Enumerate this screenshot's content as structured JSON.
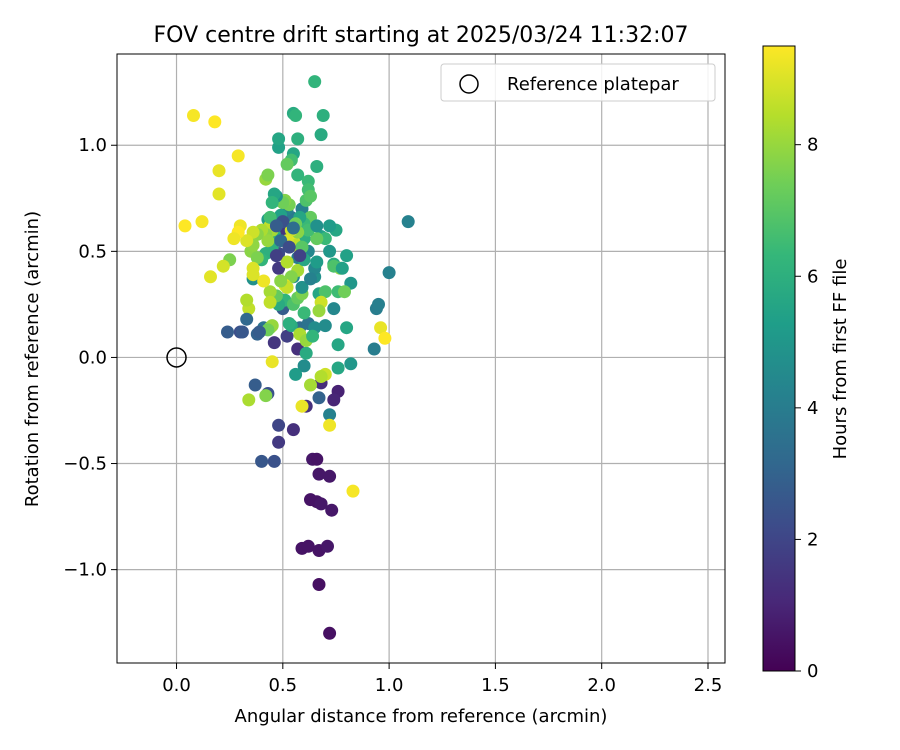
{
  "chart_data": {
    "type": "scatter",
    "title": "FOV centre drift starting at 2025/03/24 11:32:07",
    "xlabel": "Angular distance from reference (arcmin)",
    "ylabel": "Rotation from reference (arcmin)",
    "xlim": [
      -0.28,
      2.58
    ],
    "ylim": [
      -1.44,
      1.43
    ],
    "xticks": [
      0.0,
      0.5,
      1.0,
      1.5,
      2.0,
      2.5
    ],
    "xtick_labels": [
      "0.0",
      "0.5",
      "1.0",
      "1.5",
      "2.0",
      "2.5"
    ],
    "yticks": [
      -1.0,
      -0.5,
      0.0,
      0.5,
      1.0
    ],
    "ytick_labels": [
      "−1.0",
      "−0.5",
      "0.0",
      "0.5",
      "1.0"
    ],
    "grid": true,
    "legend": {
      "placement": "top-right",
      "label": "Reference platepar"
    },
    "reference_point": {
      "x": 0.0,
      "y": 0.0
    },
    "colorbar": {
      "label": "Hours from first FF file",
      "range": [
        0,
        9.5
      ],
      "ticks": [
        0,
        2,
        4,
        6,
        8
      ],
      "tick_labels": [
        "0",
        "2",
        "4",
        "6",
        "8"
      ],
      "colormap": "viridis",
      "colormap_stops": [
        "#440154",
        "#482878",
        "#3e4989",
        "#31688e",
        "#26828e",
        "#1f9e89",
        "#35b779",
        "#6ece58",
        "#b5de2b",
        "#fde725"
      ]
    },
    "points": [
      [
        0.72,
        -1.3,
        0.4
      ],
      [
        0.67,
        -1.07,
        0.4
      ],
      [
        0.59,
        -0.9,
        0.5
      ],
      [
        0.62,
        -0.89,
        0.5
      ],
      [
        0.67,
        -0.91,
        0.5
      ],
      [
        0.71,
        -0.89,
        0.6
      ],
      [
        0.63,
        -0.67,
        0.5
      ],
      [
        0.66,
        -0.68,
        0.5
      ],
      [
        0.68,
        -0.69,
        0.6
      ],
      [
        0.73,
        -0.72,
        0.6
      ],
      [
        0.64,
        -0.48,
        0.6
      ],
      [
        0.66,
        -0.48,
        0.5
      ],
      [
        0.67,
        -0.55,
        0.6
      ],
      [
        0.72,
        -0.56,
        0.6
      ],
      [
        0.76,
        -0.16,
        0.9
      ],
      [
        0.74,
        -0.2,
        1.0
      ],
      [
        0.68,
        -0.12,
        1.2
      ],
      [
        0.61,
        -0.23,
        1.3
      ],
      [
        0.55,
        -0.34,
        1.3
      ],
      [
        0.48,
        -0.4,
        1.6
      ],
      [
        0.48,
        -0.32,
        2.0
      ],
      [
        0.46,
        -0.49,
        2.4
      ],
      [
        0.4,
        -0.49,
        2.6
      ],
      [
        0.43,
        -0.17,
        2.4
      ],
      [
        0.37,
        -0.13,
        2.8
      ],
      [
        0.3,
        0.12,
        2.3
      ],
      [
        0.24,
        0.12,
        2.8
      ],
      [
        0.38,
        0.11,
        3.0
      ],
      [
        0.41,
        0.14,
        3.6
      ],
      [
        0.46,
        0.07,
        1.5
      ],
      [
        0.57,
        0.04,
        1.3
      ],
      [
        0.52,
        0.1,
        1.8
      ],
      [
        0.58,
        0.14,
        3.4
      ],
      [
        0.62,
        0.16,
        3.6
      ],
      [
        0.65,
        0.14,
        4.6
      ],
      [
        0.67,
        -0.19,
        3.0
      ],
      [
        0.72,
        -0.27,
        4.2
      ],
      [
        0.6,
        -0.04,
        4.6
      ],
      [
        0.56,
        -0.08,
        5.2
      ],
      [
        0.61,
        0.02,
        5.8
      ],
      [
        0.93,
        0.04,
        4.0
      ],
      [
        0.94,
        0.23,
        4.0
      ],
      [
        0.95,
        0.25,
        4.1
      ],
      [
        1.0,
        0.4,
        4.2
      ],
      [
        1.09,
        0.64,
        4.2
      ],
      [
        0.82,
        -0.03,
        5.0
      ],
      [
        0.76,
        0.06,
        5.6
      ],
      [
        0.76,
        -0.05,
        5.6
      ],
      [
        0.8,
        0.14,
        5.6
      ],
      [
        0.76,
        0.31,
        6.5
      ],
      [
        0.8,
        0.48,
        5.4
      ],
      [
        0.82,
        0.35,
        5.0
      ],
      [
        0.74,
        0.44,
        5.8
      ],
      [
        0.75,
        0.6,
        5.6
      ],
      [
        0.72,
        0.62,
        5.2
      ],
      [
        0.68,
        0.57,
        5.4
      ],
      [
        0.67,
        0.3,
        5.6
      ],
      [
        0.7,
        0.31,
        6.8
      ],
      [
        0.65,
        0.38,
        4.8
      ],
      [
        0.62,
        0.5,
        4.4
      ],
      [
        0.6,
        0.56,
        4.7
      ],
      [
        0.59,
        0.7,
        4.2
      ],
      [
        0.57,
        0.47,
        4.0
      ],
      [
        0.55,
        0.38,
        4.6
      ],
      [
        0.53,
        0.62,
        3.5
      ],
      [
        0.54,
        0.66,
        3.8
      ],
      [
        0.52,
        0.7,
        4.2
      ],
      [
        0.5,
        0.58,
        3.6
      ],
      [
        0.48,
        0.49,
        2.1
      ],
      [
        0.5,
        0.6,
        1.5
      ],
      [
        0.48,
        0.42,
        1.6
      ],
      [
        0.5,
        0.23,
        2.8
      ],
      [
        0.47,
        0.74,
        5.0
      ],
      [
        0.44,
        0.65,
        5.2
      ],
      [
        0.46,
        0.58,
        5.8
      ],
      [
        0.45,
        0.52,
        6.0
      ],
      [
        0.42,
        0.49,
        6.0
      ],
      [
        0.4,
        0.46,
        6.2
      ],
      [
        0.36,
        0.37,
        4.8
      ],
      [
        0.35,
        0.5,
        7.8
      ],
      [
        0.38,
        0.47,
        7.6
      ],
      [
        0.48,
        0.99,
        5.4
      ],
      [
        0.48,
        1.03,
        5.6
      ],
      [
        0.55,
        1.15,
        5.8
      ],
      [
        0.56,
        1.14,
        6.2
      ],
      [
        0.57,
        1.03,
        6.0
      ],
      [
        0.55,
        0.96,
        5.6
      ],
      [
        0.54,
        0.93,
        6.6
      ],
      [
        0.52,
        0.91,
        7.2
      ],
      [
        0.57,
        0.86,
        6.2
      ],
      [
        0.62,
        0.83,
        6.4
      ],
      [
        0.62,
        0.79,
        6.6
      ],
      [
        0.61,
        0.74,
        6.8
      ],
      [
        0.63,
        0.76,
        7.0
      ],
      [
        0.63,
        0.66,
        7.2
      ],
      [
        0.6,
        0.63,
        6.4
      ],
      [
        0.6,
        0.56,
        6.0
      ],
      [
        0.58,
        0.48,
        5.8
      ],
      [
        0.58,
        0.66,
        5.6
      ],
      [
        0.53,
        0.72,
        7.5
      ],
      [
        0.51,
        0.74,
        7.7
      ],
      [
        0.5,
        0.73,
        7.4
      ],
      [
        0.47,
        0.76,
        4.8
      ],
      [
        0.43,
        0.65,
        5.2
      ],
      [
        0.45,
        0.6,
        8.2
      ],
      [
        0.44,
        0.62,
        8.6
      ],
      [
        0.42,
        0.58,
        7.8
      ],
      [
        0.43,
        0.55,
        8.0
      ],
      [
        0.4,
        0.6,
        8.3
      ],
      [
        0.38,
        0.58,
        7.8
      ],
      [
        0.36,
        0.53,
        7.9
      ],
      [
        0.36,
        0.59,
        8.8
      ],
      [
        0.33,
        0.55,
        9.0
      ],
      [
        0.3,
        0.62,
        9.3
      ],
      [
        0.29,
        0.59,
        9.5
      ],
      [
        0.27,
        0.56,
        9.3
      ],
      [
        0.25,
        0.46,
        7.6
      ],
      [
        0.22,
        0.43,
        8.9
      ],
      [
        0.16,
        0.38,
        9.1
      ],
      [
        0.12,
        0.64,
        9.4
      ],
      [
        0.04,
        0.62,
        9.5
      ],
      [
        0.08,
        1.14,
        9.4
      ],
      [
        0.18,
        1.11,
        9.5
      ],
      [
        0.29,
        0.95,
        9.4
      ],
      [
        0.2,
        0.88,
        9.2
      ],
      [
        0.2,
        0.77,
        9.1
      ],
      [
        0.42,
        0.84,
        8.0
      ],
      [
        0.43,
        0.86,
        7.6
      ],
      [
        0.65,
        1.3,
        6.2
      ],
      [
        0.69,
        1.14,
        6.0
      ],
      [
        0.68,
        1.05,
        5.8
      ],
      [
        0.66,
        0.9,
        6.0
      ],
      [
        0.55,
        0.55,
        9.2
      ],
      [
        0.56,
        0.53,
        8.6
      ],
      [
        0.57,
        0.41,
        8.2
      ],
      [
        0.54,
        0.38,
        7.7
      ],
      [
        0.52,
        0.45,
        8.4
      ],
      [
        0.51,
        0.34,
        9.1
      ],
      [
        0.52,
        0.33,
        8.7
      ],
      [
        0.51,
        0.27,
        6.2
      ],
      [
        0.48,
        0.25,
        5.8
      ],
      [
        0.47,
        0.29,
        7.2
      ],
      [
        0.49,
        0.36,
        7.8
      ],
      [
        0.44,
        0.31,
        8.2
      ],
      [
        0.44,
        0.26,
        8.6
      ],
      [
        0.41,
        0.36,
        9.3
      ],
      [
        0.36,
        0.39,
        9.0
      ],
      [
        0.36,
        0.42,
        9.0
      ],
      [
        0.34,
        0.23,
        8.6
      ],
      [
        0.33,
        0.27,
        8.4
      ],
      [
        0.44,
        0.14,
        7.8
      ],
      [
        0.45,
        0.15,
        8.0
      ],
      [
        0.43,
        0.13,
        7.4
      ],
      [
        0.55,
        0.25,
        6.8
      ],
      [
        0.57,
        0.28,
        7.2
      ],
      [
        0.59,
        0.3,
        7.6
      ],
      [
        0.54,
        0.15,
        5.8
      ],
      [
        0.53,
        0.16,
        6.0
      ],
      [
        0.58,
        0.11,
        8.3
      ],
      [
        0.61,
        0.08,
        8.0
      ],
      [
        0.6,
        0.21,
        6.4
      ],
      [
        0.68,
        0.26,
        8.8
      ],
      [
        0.67,
        0.22,
        8.0
      ],
      [
        0.64,
        0.1,
        6.2
      ],
      [
        0.7,
        -0.08,
        8.8
      ],
      [
        0.68,
        -0.09,
        8.4
      ],
      [
        0.63,
        -0.13,
        8.2
      ],
      [
        0.59,
        -0.23,
        9.2
      ],
      [
        0.72,
        -0.32,
        9.3
      ],
      [
        0.45,
        -0.02,
        9.2
      ],
      [
        0.34,
        -0.2,
        8.3
      ],
      [
        0.42,
        -0.18,
        7.7
      ],
      [
        0.83,
        -0.63,
        9.4
      ],
      [
        0.96,
        0.14,
        9.2
      ],
      [
        0.98,
        0.09,
        9.5
      ],
      [
        0.79,
        0.31,
        7.4
      ],
      [
        0.77,
        0.42,
        7.8
      ],
      [
        0.74,
        0.43,
        6.8
      ],
      [
        0.7,
        0.56,
        6.4
      ],
      [
        0.66,
        0.56,
        7.2
      ],
      [
        0.62,
        0.6,
        6.6
      ],
      [
        0.59,
        0.52,
        7.0
      ],
      [
        0.57,
        0.59,
        7.8
      ],
      [
        0.56,
        0.63,
        7.4
      ],
      [
        0.54,
        0.6,
        8.8
      ],
      [
        0.52,
        0.55,
        9.0
      ],
      [
        0.59,
        0.33,
        4.8
      ],
      [
        0.65,
        0.42,
        4.4
      ],
      [
        0.7,
        0.15,
        4.6
      ],
      [
        0.74,
        0.23,
        4.4
      ],
      [
        0.63,
        0.37,
        4.2
      ],
      [
        0.66,
        0.62,
        4.8
      ],
      [
        0.78,
        0.42,
        5.4
      ],
      [
        0.72,
        0.5,
        5.0
      ],
      [
        0.66,
        0.45,
        5.2
      ],
      [
        0.6,
        0.46,
        5.6
      ],
      [
        0.49,
        0.67,
        5.4
      ],
      [
        0.46,
        0.77,
        5.6
      ],
      [
        0.45,
        0.73,
        6.2
      ],
      [
        0.44,
        0.66,
        6.6
      ],
      [
        0.5,
        0.64,
        2.4
      ],
      [
        0.47,
        0.62,
        2.8
      ],
      [
        0.49,
        0.55,
        3.2
      ],
      [
        0.55,
        0.61,
        3.4
      ],
      [
        0.47,
        0.48,
        1.8
      ],
      [
        0.53,
        0.52,
        2.2
      ],
      [
        0.58,
        0.48,
        1.9
      ],
      [
        0.33,
        0.18,
        3.2
      ],
      [
        0.31,
        0.12,
        2.6
      ],
      [
        0.39,
        0.12,
        2.8
      ]
    ]
  }
}
